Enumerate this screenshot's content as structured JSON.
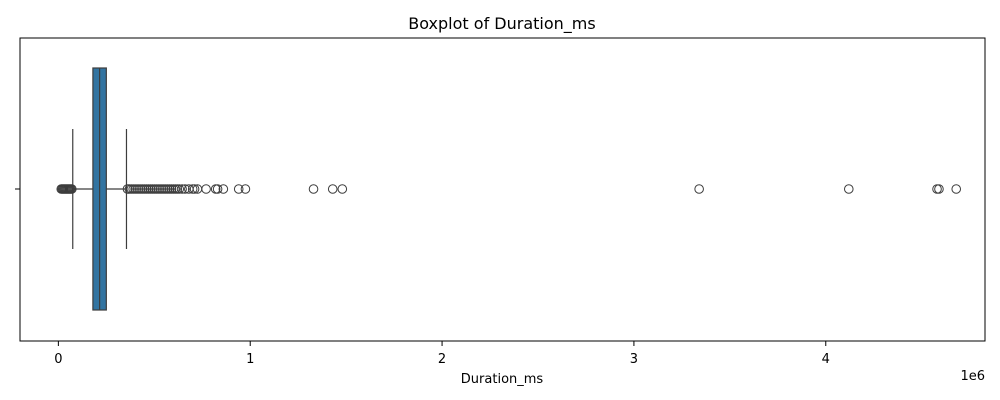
{
  "chart_data": {
    "type": "boxplot",
    "orientation": "horizontal",
    "title": "Boxplot of Duration_ms",
    "xlabel": "Duration_ms",
    "ylabel": "",
    "x_scale_offset": "1e6",
    "xlim": [
      -200000,
      4830000
    ],
    "x_ticks": [
      {
        "value": 0,
        "label": "0"
      },
      {
        "value": 1000000,
        "label": "1"
      },
      {
        "value": 2000000,
        "label": "2"
      },
      {
        "value": 3000000,
        "label": "3"
      },
      {
        "value": 4000000,
        "label": "4"
      }
    ],
    "grid": false,
    "box_color": "#3274a1",
    "edge_color": "#3d3d3d",
    "stats": {
      "whisker_low": 75000,
      "q1": 180000,
      "median": 215000,
      "q3": 250000,
      "whisker_high": 355000
    },
    "outliers": [
      15000,
      20000,
      25000,
      30000,
      35000,
      40000,
      45000,
      50000,
      55000,
      60000,
      65000,
      70000,
      360000,
      370000,
      380000,
      390000,
      400000,
      410000,
      420000,
      430000,
      440000,
      450000,
      460000,
      470000,
      480000,
      490000,
      500000,
      510000,
      520000,
      530000,
      540000,
      550000,
      560000,
      570000,
      580000,
      590000,
      600000,
      610000,
      620000,
      630000,
      645000,
      660000,
      680000,
      700000,
      710000,
      725000,
      770000,
      820000,
      830000,
      860000,
      940000,
      975000,
      1330000,
      1430000,
      1480000,
      3340000,
      4120000,
      4580000,
      4590000,
      4680000
    ]
  }
}
